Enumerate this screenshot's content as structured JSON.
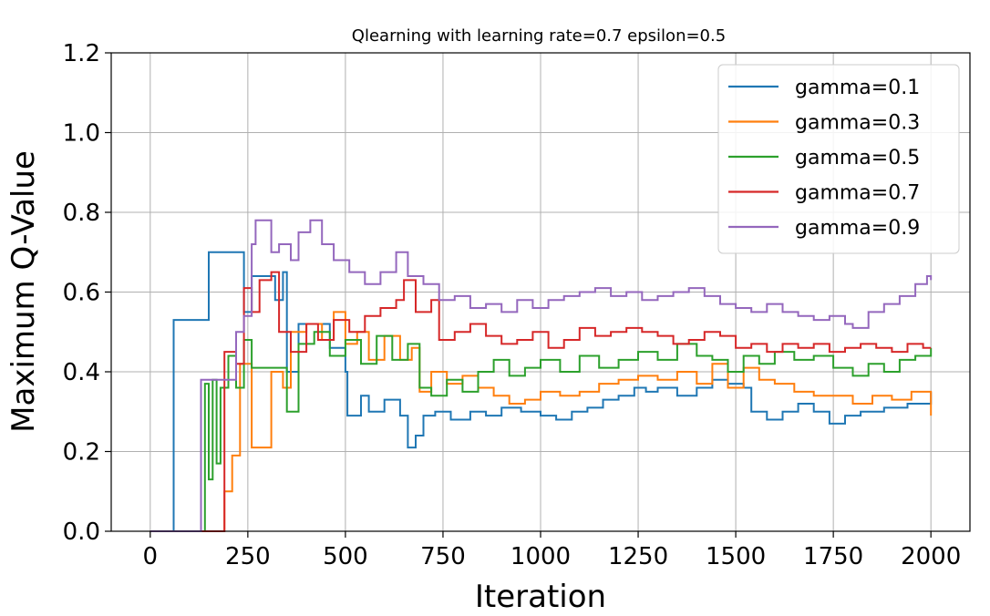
{
  "chart_data": {
    "type": "line",
    "title": "Qlearning with learning rate=0.7 epsilon=0.5",
    "xlabel": "Iteration",
    "ylabel": "Maximum Q-Value",
    "xlim": [
      -100,
      2100
    ],
    "ylim": [
      0,
      1.2
    ],
    "xticks": [
      0,
      250,
      500,
      750,
      1000,
      1250,
      1500,
      1750,
      2000
    ],
    "yticks": [
      "0.0",
      "0.2",
      "0.4",
      "0.6",
      "0.8",
      "1.0",
      "1.2"
    ],
    "grid": true,
    "legend_position": "top-right",
    "step": true,
    "series": [
      {
        "name": "gamma=0.1",
        "color": "#1f77b4",
        "points": [
          [
            0,
            0
          ],
          [
            60,
            0
          ],
          [
            60,
            0.53
          ],
          [
            150,
            0.53
          ],
          [
            150,
            0.7
          ],
          [
            240,
            0.7
          ],
          [
            240,
            0.55
          ],
          [
            260,
            0.64
          ],
          [
            300,
            0.64
          ],
          [
            320,
            0.58
          ],
          [
            340,
            0.65
          ],
          [
            350,
            0.4
          ],
          [
            380,
            0.52
          ],
          [
            420,
            0.52
          ],
          [
            460,
            0.46
          ],
          [
            500,
            0.4
          ],
          [
            505,
            0.29
          ],
          [
            540,
            0.34
          ],
          [
            560,
            0.3
          ],
          [
            600,
            0.33
          ],
          [
            640,
            0.29
          ],
          [
            660,
            0.21
          ],
          [
            680,
            0.24
          ],
          [
            700,
            0.29
          ],
          [
            730,
            0.3
          ],
          [
            770,
            0.28
          ],
          [
            820,
            0.3
          ],
          [
            860,
            0.29
          ],
          [
            900,
            0.31
          ],
          [
            950,
            0.3
          ],
          [
            1000,
            0.29
          ],
          [
            1040,
            0.28
          ],
          [
            1080,
            0.3
          ],
          [
            1120,
            0.31
          ],
          [
            1160,
            0.33
          ],
          [
            1200,
            0.34
          ],
          [
            1240,
            0.36
          ],
          [
            1270,
            0.35
          ],
          [
            1300,
            0.36
          ],
          [
            1350,
            0.34
          ],
          [
            1400,
            0.36
          ],
          [
            1440,
            0.38
          ],
          [
            1480,
            0.37
          ],
          [
            1520,
            0.36
          ],
          [
            1540,
            0.3
          ],
          [
            1580,
            0.28
          ],
          [
            1620,
            0.3
          ],
          [
            1660,
            0.32
          ],
          [
            1700,
            0.3
          ],
          [
            1740,
            0.27
          ],
          [
            1780,
            0.29
          ],
          [
            1820,
            0.3
          ],
          [
            1880,
            0.31
          ],
          [
            1940,
            0.32
          ],
          [
            2000,
            0.35
          ]
        ]
      },
      {
        "name": "gamma=0.3",
        "color": "#ff7f0e",
        "points": [
          [
            0,
            0
          ],
          [
            190,
            0
          ],
          [
            190,
            0.1
          ],
          [
            210,
            0.19
          ],
          [
            230,
            0.42
          ],
          [
            260,
            0.21
          ],
          [
            300,
            0.21
          ],
          [
            310,
            0.4
          ],
          [
            340,
            0.36
          ],
          [
            360,
            0.5
          ],
          [
            400,
            0.52
          ],
          [
            440,
            0.48
          ],
          [
            470,
            0.55
          ],
          [
            500,
            0.47
          ],
          [
            530,
            0.5
          ],
          [
            560,
            0.43
          ],
          [
            600,
            0.49
          ],
          [
            640,
            0.43
          ],
          [
            670,
            0.46
          ],
          [
            690,
            0.35
          ],
          [
            720,
            0.4
          ],
          [
            760,
            0.37
          ],
          [
            800,
            0.39
          ],
          [
            840,
            0.36
          ],
          [
            880,
            0.34
          ],
          [
            920,
            0.32
          ],
          [
            960,
            0.33
          ],
          [
            1000,
            0.35
          ],
          [
            1050,
            0.34
          ],
          [
            1100,
            0.35
          ],
          [
            1150,
            0.37
          ],
          [
            1200,
            0.38
          ],
          [
            1250,
            0.39
          ],
          [
            1300,
            0.38
          ],
          [
            1350,
            0.4
          ],
          [
            1400,
            0.37
          ],
          [
            1440,
            0.42
          ],
          [
            1480,
            0.36
          ],
          [
            1520,
            0.41
          ],
          [
            1560,
            0.38
          ],
          [
            1600,
            0.37
          ],
          [
            1650,
            0.35
          ],
          [
            1700,
            0.34
          ],
          [
            1750,
            0.34
          ],
          [
            1800,
            0.32
          ],
          [
            1850,
            0.34
          ],
          [
            1900,
            0.33
          ],
          [
            1950,
            0.35
          ],
          [
            2000,
            0.29
          ]
        ]
      },
      {
        "name": "gamma=0.5",
        "color": "#2ca02c",
        "points": [
          [
            0,
            0
          ],
          [
            140,
            0
          ],
          [
            140,
            0.37
          ],
          [
            150,
            0.13
          ],
          [
            160,
            0.38
          ],
          [
            170,
            0.17
          ],
          [
            180,
            0.36
          ],
          [
            200,
            0.44
          ],
          [
            220,
            0.36
          ],
          [
            240,
            0.48
          ],
          [
            260,
            0.41
          ],
          [
            340,
            0.41
          ],
          [
            350,
            0.3
          ],
          [
            380,
            0.47
          ],
          [
            420,
            0.5
          ],
          [
            460,
            0.44
          ],
          [
            500,
            0.48
          ],
          [
            540,
            0.42
          ],
          [
            580,
            0.49
          ],
          [
            620,
            0.43
          ],
          [
            660,
            0.47
          ],
          [
            690,
            0.36
          ],
          [
            720,
            0.34
          ],
          [
            760,
            0.38
          ],
          [
            800,
            0.35
          ],
          [
            840,
            0.4
          ],
          [
            880,
            0.43
          ],
          [
            920,
            0.39
          ],
          [
            960,
            0.41
          ],
          [
            1000,
            0.43
          ],
          [
            1050,
            0.4
          ],
          [
            1100,
            0.44
          ],
          [
            1150,
            0.41
          ],
          [
            1200,
            0.43
          ],
          [
            1250,
            0.45
          ],
          [
            1300,
            0.43
          ],
          [
            1350,
            0.47
          ],
          [
            1400,
            0.44
          ],
          [
            1440,
            0.43
          ],
          [
            1480,
            0.4
          ],
          [
            1520,
            0.44
          ],
          [
            1560,
            0.42
          ],
          [
            1600,
            0.45
          ],
          [
            1650,
            0.43
          ],
          [
            1700,
            0.44
          ],
          [
            1750,
            0.41
          ],
          [
            1800,
            0.39
          ],
          [
            1840,
            0.42
          ],
          [
            1880,
            0.4
          ],
          [
            1920,
            0.43
          ],
          [
            1960,
            0.44
          ],
          [
            2000,
            0.46
          ]
        ]
      },
      {
        "name": "gamma=0.7",
        "color": "#d62728",
        "points": [
          [
            0,
            0
          ],
          [
            190,
            0
          ],
          [
            190,
            0.45
          ],
          [
            220,
            0.42
          ],
          [
            240,
            0.61
          ],
          [
            260,
            0.55
          ],
          [
            280,
            0.63
          ],
          [
            310,
            0.65
          ],
          [
            330,
            0.5
          ],
          [
            360,
            0.45
          ],
          [
            400,
            0.52
          ],
          [
            430,
            0.48
          ],
          [
            470,
            0.53
          ],
          [
            510,
            0.5
          ],
          [
            550,
            0.54
          ],
          [
            590,
            0.56
          ],
          [
            630,
            0.58
          ],
          [
            650,
            0.63
          ],
          [
            680,
            0.55
          ],
          [
            720,
            0.58
          ],
          [
            740,
            0.48
          ],
          [
            780,
            0.5
          ],
          [
            820,
            0.52
          ],
          [
            860,
            0.49
          ],
          [
            900,
            0.47
          ],
          [
            940,
            0.48
          ],
          [
            980,
            0.5
          ],
          [
            1020,
            0.46
          ],
          [
            1060,
            0.48
          ],
          [
            1100,
            0.51
          ],
          [
            1140,
            0.49
          ],
          [
            1180,
            0.5
          ],
          [
            1220,
            0.51
          ],
          [
            1260,
            0.5
          ],
          [
            1300,
            0.49
          ],
          [
            1340,
            0.47
          ],
          [
            1380,
            0.48
          ],
          [
            1420,
            0.5
          ],
          [
            1460,
            0.49
          ],
          [
            1500,
            0.46
          ],
          [
            1540,
            0.47
          ],
          [
            1580,
            0.45
          ],
          [
            1620,
            0.47
          ],
          [
            1660,
            0.46
          ],
          [
            1700,
            0.47
          ],
          [
            1740,
            0.45
          ],
          [
            1780,
            0.46
          ],
          [
            1820,
            0.47
          ],
          [
            1860,
            0.46
          ],
          [
            1900,
            0.45
          ],
          [
            1940,
            0.47
          ],
          [
            1980,
            0.46
          ],
          [
            2000,
            0.46
          ]
        ]
      },
      {
        "name": "gamma=0.9",
        "color": "#9467bd",
        "points": [
          [
            0,
            0
          ],
          [
            130,
            0
          ],
          [
            130,
            0.38
          ],
          [
            220,
            0.38
          ],
          [
            220,
            0.5
          ],
          [
            240,
            0.54
          ],
          [
            260,
            0.72
          ],
          [
            270,
            0.78
          ],
          [
            310,
            0.7
          ],
          [
            330,
            0.72
          ],
          [
            360,
            0.68
          ],
          [
            380,
            0.75
          ],
          [
            410,
            0.78
          ],
          [
            440,
            0.72
          ],
          [
            470,
            0.68
          ],
          [
            510,
            0.65
          ],
          [
            550,
            0.62
          ],
          [
            590,
            0.65
          ],
          [
            630,
            0.7
          ],
          [
            660,
            0.64
          ],
          [
            700,
            0.62
          ],
          [
            740,
            0.58
          ],
          [
            780,
            0.59
          ],
          [
            820,
            0.56
          ],
          [
            860,
            0.57
          ],
          [
            900,
            0.55
          ],
          [
            940,
            0.58
          ],
          [
            980,
            0.56
          ],
          [
            1020,
            0.58
          ],
          [
            1060,
            0.59
          ],
          [
            1100,
            0.6
          ],
          [
            1140,
            0.61
          ],
          [
            1180,
            0.59
          ],
          [
            1220,
            0.6
          ],
          [
            1260,
            0.58
          ],
          [
            1300,
            0.59
          ],
          [
            1340,
            0.6
          ],
          [
            1380,
            0.61
          ],
          [
            1420,
            0.59
          ],
          [
            1460,
            0.57
          ],
          [
            1500,
            0.56
          ],
          [
            1540,
            0.55
          ],
          [
            1580,
            0.57
          ],
          [
            1620,
            0.55
          ],
          [
            1660,
            0.54
          ],
          [
            1700,
            0.53
          ],
          [
            1740,
            0.54
          ],
          [
            1780,
            0.52
          ],
          [
            1800,
            0.51
          ],
          [
            1840,
            0.55
          ],
          [
            1880,
            0.57
          ],
          [
            1920,
            0.59
          ],
          [
            1960,
            0.62
          ],
          [
            1990,
            0.64
          ],
          [
            2000,
            0.63
          ]
        ]
      }
    ]
  }
}
